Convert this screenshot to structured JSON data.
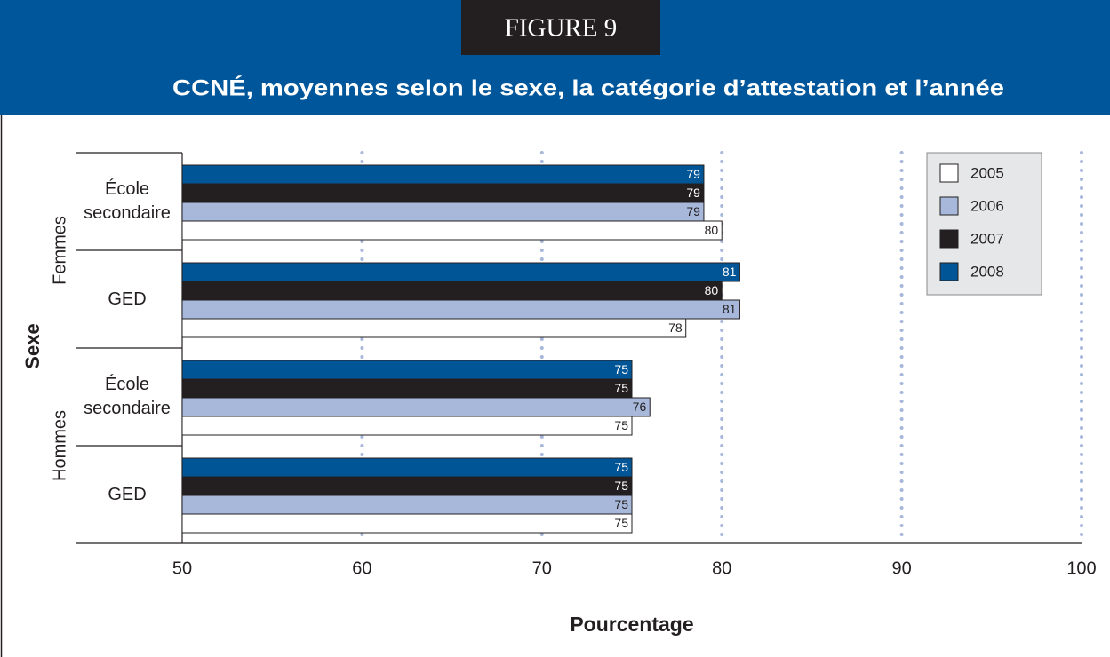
{
  "chart_data": {
    "type": "bar",
    "figure_label": "FIGURE 9",
    "title": "CCNÉ, moyennes selon le sexe, la catégorie d’attestation et l’année",
    "y_label": "Sexe",
    "x_label": "Pourcentage",
    "groups": [
      "Femmes",
      "Hommes"
    ],
    "categories": [
      "École secondaire",
      "GED",
      "École secondaire",
      "GED"
    ],
    "series": [
      {
        "name": "2005",
        "color": "#ffffff",
        "values": [
          80,
          78,
          75,
          75
        ]
      },
      {
        "name": "2006",
        "color": "#a7b8da",
        "values": [
          79,
          81,
          76,
          75
        ]
      },
      {
        "name": "2007",
        "color": "#231f20",
        "values": [
          79,
          80,
          75,
          75
        ]
      },
      {
        "name": "2008",
        "color": "#005596",
        "values": [
          79,
          81,
          75,
          75
        ]
      }
    ],
    "xlim": [
      50,
      100
    ],
    "xticks": [
      50,
      60,
      70,
      80,
      90,
      100
    ],
    "grid": true,
    "legend": "top-right"
  }
}
